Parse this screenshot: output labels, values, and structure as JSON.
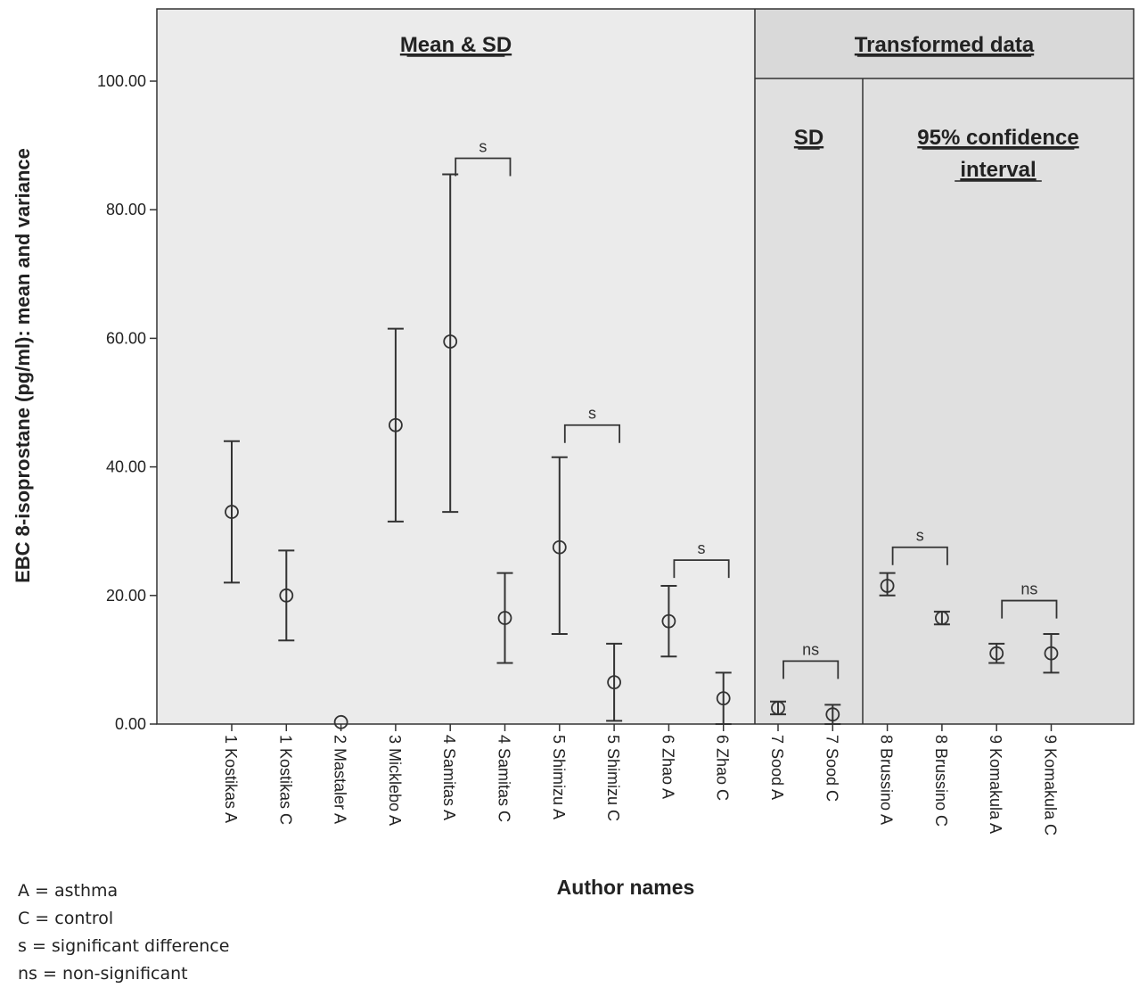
{
  "chart_data": {
    "type": "errorbar",
    "ylabel": "EBC 8-isoprostane (pg/ml): mean and variance",
    "xlabel": "Author names",
    "ylim": [
      0,
      100
    ],
    "yticks": [
      "0.00",
      "20.00",
      "40.00",
      "60.00",
      "80.00",
      "100.00"
    ],
    "categories": [
      "1 Kostikas A",
      "1 Kostikas C",
      "2 Mastaler A",
      "3 Micklebo A",
      "4 Samitas A",
      "4 Samitas C",
      "5 Shimizu A",
      "5 Shimizu C",
      "6 Zhao A",
      "6 Zhao C",
      "7 Sood A",
      "7 Sood C",
      "8 Brussino A",
      "8 Brussino C",
      "9 Komakula A",
      "9 Komakula C"
    ],
    "points": [
      {
        "mean": 33.0,
        "low": 22.0,
        "high": 44.0
      },
      {
        "mean": 20.0,
        "low": 13.0,
        "high": 27.0
      },
      {
        "mean": 0.3,
        "low": null,
        "high": null
      },
      {
        "mean": 46.5,
        "low": 31.5,
        "high": 61.5
      },
      {
        "mean": 59.5,
        "low": 33.0,
        "high": 85.5
      },
      {
        "mean": 16.5,
        "low": 9.5,
        "high": 23.5
      },
      {
        "mean": 27.5,
        "low": 14.0,
        "high": 41.5
      },
      {
        "mean": 6.5,
        "low": 0.5,
        "high": 12.5
      },
      {
        "mean": 16.0,
        "low": 10.5,
        "high": 21.5
      },
      {
        "mean": 4.0,
        "low": 0.0,
        "high": 8.0
      },
      {
        "mean": 2.5,
        "low": 1.5,
        "high": 3.5
      },
      {
        "mean": 1.5,
        "low": 0.0,
        "high": 3.0
      },
      {
        "mean": 21.5,
        "low": 20.0,
        "high": 23.5
      },
      {
        "mean": 16.5,
        "low": 15.5,
        "high": 17.5
      },
      {
        "mean": 11.0,
        "low": 9.5,
        "high": 12.5
      },
      {
        "mean": 11.0,
        "low": 8.0,
        "high": 14.0
      }
    ],
    "sections": [
      {
        "label": "Mean & SD",
        "from": 0,
        "to": 9
      },
      {
        "label": "Transformed data",
        "from": 10,
        "to": 15
      },
      {
        "label": "SD",
        "from": 10,
        "to": 11
      },
      {
        "label": "95% confidence",
        "label2": "interval",
        "from": 12,
        "to": 15
      }
    ],
    "comparisons": [
      {
        "from": 4,
        "to": 5,
        "y": 88,
        "label": "s"
      },
      {
        "from": 6,
        "to": 7,
        "y": 46.5,
        "label": "s"
      },
      {
        "from": 8,
        "to": 9,
        "y": 25.5,
        "label": "s"
      },
      {
        "from": 10,
        "to": 11,
        "y": 9.8,
        "label": "ns"
      },
      {
        "from": 12,
        "to": 13,
        "y": 27.5,
        "label": "s"
      },
      {
        "from": 14,
        "to": 15,
        "y": 19.2,
        "label": "ns"
      }
    ]
  },
  "legend": {
    "lines": [
      "A = asthma",
      "C = control",
      "s = significant difference",
      "ns = non-significant"
    ]
  }
}
